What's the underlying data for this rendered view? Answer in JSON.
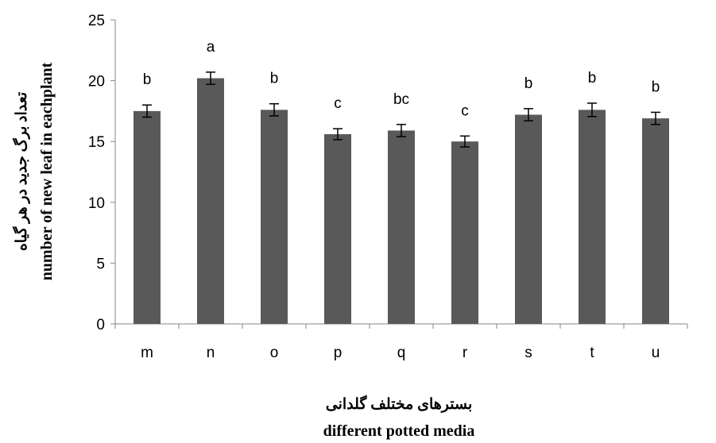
{
  "chart_data": {
    "type": "bar",
    "categories": [
      "m",
      "n",
      "o",
      "p",
      "q",
      "r",
      "s",
      "t",
      "u"
    ],
    "values": [
      17.5,
      20.2,
      17.6,
      15.6,
      15.9,
      15.0,
      17.2,
      17.6,
      16.9
    ],
    "errors": [
      0.5,
      0.5,
      0.5,
      0.45,
      0.5,
      0.45,
      0.5,
      0.55,
      0.5
    ],
    "significance_letters": [
      "b",
      "a",
      "b",
      "c",
      "bc",
      "c",
      "b",
      "b",
      "b"
    ],
    "ylim": [
      0,
      25
    ],
    "yticks": [
      0,
      5,
      10,
      15,
      20,
      25
    ],
    "ylabel_fa": "تعداد برگ جدید در هر گیاه",
    "ylabel_en": "number of new leaf in eachplant",
    "xlabel_fa": "بسترهای مختلف گلدانی",
    "xlabel_en": "different potted media",
    "grid": false,
    "bar_color": "#595959",
    "error_color": "#000000"
  }
}
